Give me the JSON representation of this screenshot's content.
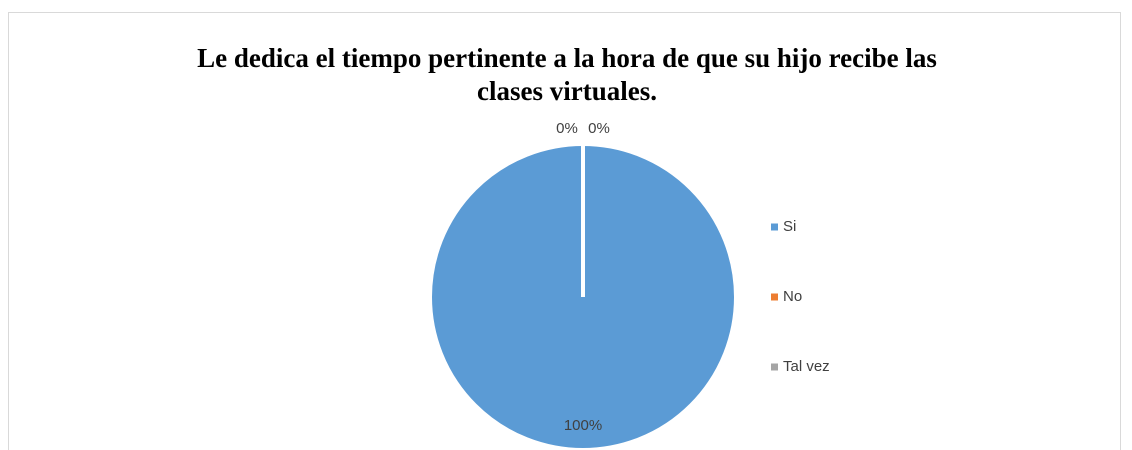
{
  "chart_data": {
    "type": "pie",
    "title": [
      "Le dedica el tiempo pertinente a la hora de que su hijo recibe las",
      "clases virtuales."
    ],
    "categories": [
      "Si",
      "No",
      "Tal vez"
    ],
    "values": [
      100,
      0,
      0
    ],
    "value_labels": [
      "100%",
      "0%",
      "0%"
    ],
    "colors": [
      "#5b9bd5",
      "#ed7d31",
      "#a5a5a5"
    ],
    "legend": "right"
  }
}
